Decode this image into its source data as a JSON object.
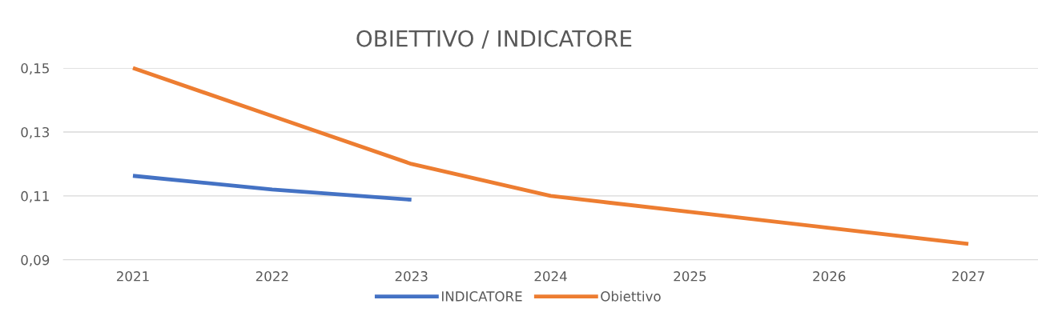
{
  "chart_data": {
    "type": "line",
    "title": "OBIETTIVO / INDICATORE",
    "categories": [
      "2021",
      "2022",
      "2023",
      "2024",
      "2025",
      "2026",
      "2027"
    ],
    "series": [
      {
        "name": "INDICATORE",
        "color": "#4472c4",
        "values": [
          0.1163,
          0.112,
          0.1088,
          null,
          null,
          null,
          null
        ]
      },
      {
        "name": "Obiettivo",
        "color": "#ed7d31",
        "values": [
          0.15,
          0.135,
          0.12,
          0.11,
          0.105,
          0.1,
          0.095
        ]
      }
    ],
    "ylim": [
      0.09,
      0.15
    ],
    "yticks": [
      {
        "value": 0.09,
        "label": "0,09"
      },
      {
        "value": 0.11,
        "label": "0,11"
      },
      {
        "value": 0.13,
        "label": "0,13"
      },
      {
        "value": 0.15,
        "label": "0,15"
      }
    ],
    "grid": "y",
    "legend": "bottom",
    "marker": "none",
    "line_style": "solid"
  }
}
